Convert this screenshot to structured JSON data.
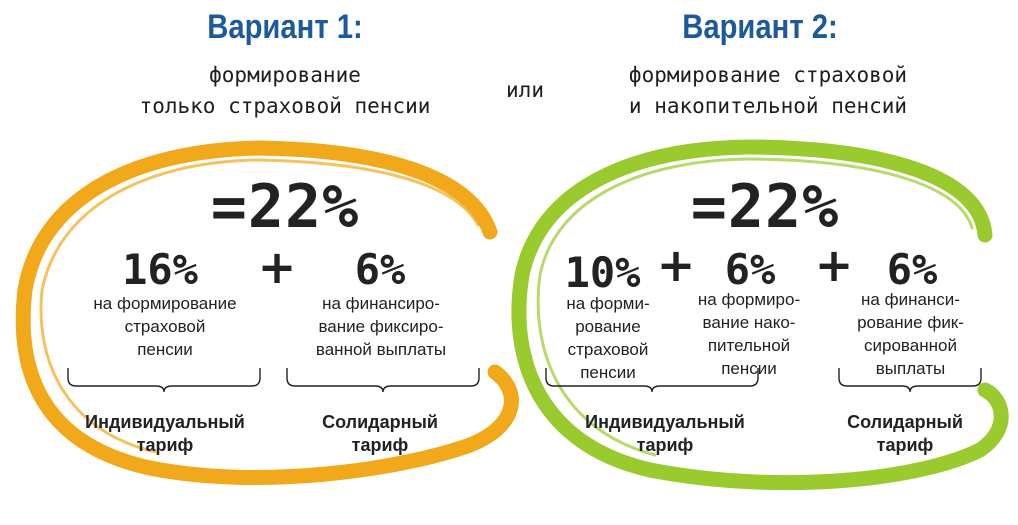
{
  "colors": {
    "title_blue": "#1d5a9c",
    "ring_orange": "#f2a81b",
    "ring_green": "#9acb2e",
    "text_dark": "#1e1e1e"
  },
  "separator": "или",
  "variant1": {
    "title": "Вариант 1:",
    "subtitle": "формирование\nтолько страховой пенсии",
    "total": "=22%",
    "parts": [
      {
        "percent": "16%",
        "description": "на формирование\nстраховой\nпенсии"
      },
      {
        "percent": "6%",
        "description": "на финансиро-\nвание фиксиро-\nванной выплаты"
      }
    ],
    "plus": [
      "+"
    ],
    "tariffs": [
      "Индивидуальный\nтариф",
      "Солидарный\nтариф"
    ]
  },
  "variant2": {
    "title": "Вариант 2:",
    "subtitle": "формирование страховой\nи накопительной пенсий",
    "total": "=22%",
    "parts": [
      {
        "percent": "10%",
        "description": "на форми-\nрование\nстраховой\nпенсии"
      },
      {
        "percent": "6%",
        "description": "на формиро-\nвание нако-\nпительной\nпенсии"
      },
      {
        "percent": "6%",
        "description": "на финанси-\nрование фик-\nсированной\nвыплаты"
      }
    ],
    "plus": [
      "+",
      "+"
    ],
    "tariffs": [
      "Индивидуальный\nтариф",
      "Солидарный\nтариф"
    ]
  }
}
